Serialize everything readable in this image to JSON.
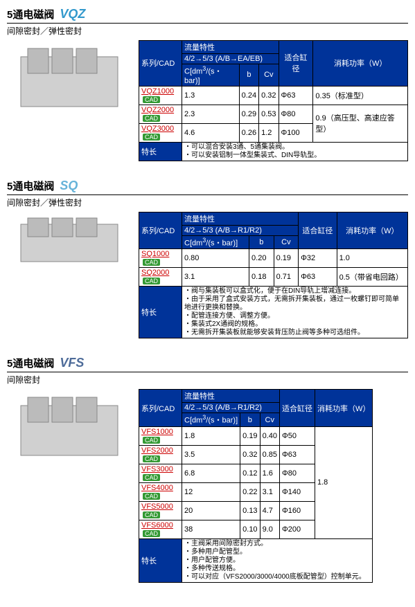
{
  "sections": [
    {
      "title": "5通电磁阀",
      "model": "VQZ",
      "model_class": "model-vqz",
      "subtitle": "间隙密封／弹性密封",
      "flow_header": "4/2→5/3 (A/B→EA/EB)",
      "col_unit": "C[dm³/(s・bar)]",
      "rows": [
        {
          "series": "VQZ1000",
          "c": "1.3",
          "b": "0.24",
          "cv": "0.32",
          "dia": "Φ63",
          "pwr": "0.35（标准型）"
        },
        {
          "series": "VQZ2000",
          "c": "2.3",
          "b": "0.29",
          "cv": "0.53",
          "dia": "Φ80",
          "pwr": "0.9（高压型、高速应答型）"
        },
        {
          "series": "VQZ3000",
          "c": "4.6",
          "b": "0.26",
          "cv": "1.2",
          "dia": "Φ100",
          "pwr": ""
        }
      ],
      "pwr_rowspan": [
        1,
        2
      ],
      "features": "・可以混合安装3通、5通集装阀。\n・可以安装铝制一体型集装式、DIN导轨型。"
    },
    {
      "title": "5通电磁阀",
      "model": "SQ",
      "model_class": "model-sq",
      "subtitle": "间隙密封／弹性密封",
      "flow_header": "4/2→5/3 (A/B→R1/R2)",
      "col_unit": "C[dm³/(s・bar)]",
      "rows": [
        {
          "series": "SQ1000",
          "c": "0.80",
          "b": "0.20",
          "cv": "0.19",
          "dia": "Φ32",
          "pwr": "1.0"
        },
        {
          "series": "SQ2000",
          "c": "3.1",
          "b": "0.18",
          "cv": "0.71",
          "dia": "Φ63",
          "pwr": "0.5（带省电回路）"
        }
      ],
      "features": "・阀与集装板可以盒式化，便于在DIN导轨上增减连接。\n・由于采用了盒式安装方式，无需拆开集装板，通过一枚螺钉即可简单地进行更换和替换。\n・配管连接方便、调整方便。\n・集装式2X通阀的规格。\n・无需拆开集装板就能够安装背压防止阀等多种可选组件。"
    },
    {
      "title": "5通电磁阀",
      "model": "VFS",
      "model_class": "model-vfs",
      "subtitle": "间隙密封",
      "flow_header": "4/2→5/3 (A/B→R1/R2)",
      "col_unit": "C[dm³/(s・bar)]",
      "rows": [
        {
          "series": "VFS1000",
          "c": "1.8",
          "b": "0.19",
          "cv": "0.40",
          "dia": "Φ50",
          "pwr": ""
        },
        {
          "series": "VFS2000",
          "c": "3.5",
          "b": "0.32",
          "cv": "0.85",
          "dia": "Φ63",
          "pwr": ""
        },
        {
          "series": "VFS3000",
          "c": "6.8",
          "b": "0.12",
          "cv": "1.6",
          "dia": "Φ80",
          "pwr": "1.8"
        },
        {
          "series": "VFS4000",
          "c": "12",
          "b": "0.22",
          "cv": "3.1",
          "dia": "Φ140",
          "pwr": ""
        },
        {
          "series": "VFS5000",
          "c": "20",
          "b": "0.13",
          "cv": "4.7",
          "dia": "Φ160",
          "pwr": ""
        },
        {
          "series": "VFS6000",
          "c": "38",
          "b": "0.10",
          "cv": "9.0",
          "dia": "Φ200",
          "pwr": ""
        }
      ],
      "pwr_single": "1.8",
      "features": "・主阀采用间隙密封方式。\n・多种用户配管型。\n・用户配管方便。\n・多种传送规格。\n・可以对应（VFS2000/3000/4000底板配管型）控制单元。"
    }
  ],
  "headers": {
    "series_cad": "系列/CAD",
    "flow": "流量特性",
    "b": "b",
    "cv": "Cv",
    "dia": "适合缸径",
    "pwr": "消耗功率（W）",
    "feat": "特长"
  }
}
